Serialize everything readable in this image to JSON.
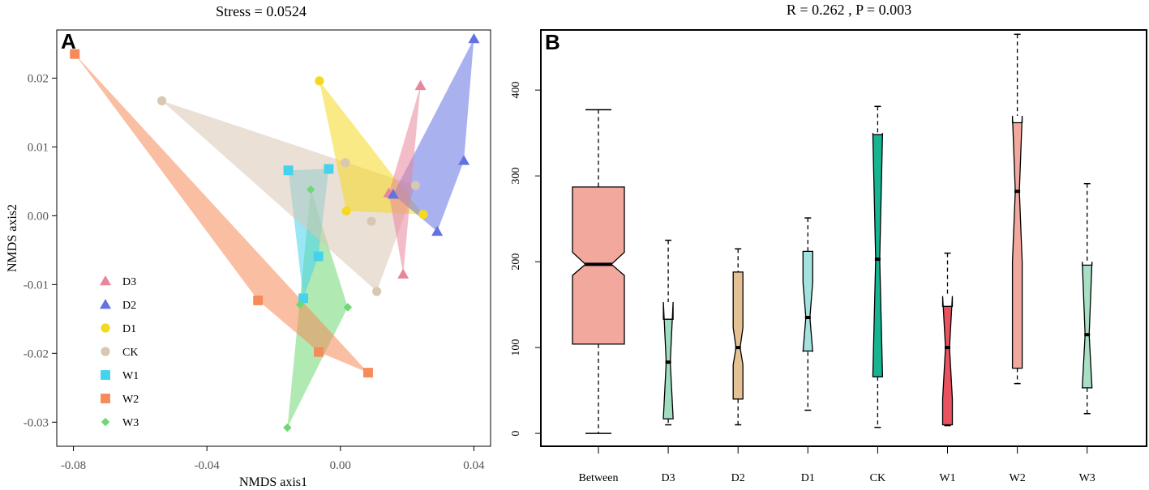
{
  "chart_data": [
    {
      "panel": "A",
      "type": "scatter",
      "title": "Stress = 0.0524",
      "xlabel": "NMDS axis1",
      "ylabel": "NMDS axis2",
      "xlim": [
        -0.085,
        0.045
      ],
      "ylim": [
        -0.0335,
        0.027
      ],
      "xticks": [
        -0.08,
        -0.04,
        0.0,
        0.04
      ],
      "xtick_labels": [
        "-0.08",
        "-0.04",
        "0.00",
        "0.04"
      ],
      "yticks": [
        -0.03,
        -0.02,
        -0.01,
        0.0,
        0.01,
        0.02
      ],
      "ytick_labels": [
        "-0.03",
        "-0.02",
        "-0.01",
        "0.00",
        "0.01",
        "0.02"
      ],
      "legend_position": "bottom-left",
      "groups": [
        {
          "name": "D3",
          "shape": "triangle",
          "color": "#e8869c",
          "points": [
            [
              0.0145,
              0.0033
            ],
            [
              0.024,
              0.0189
            ],
            [
              0.0188,
              -0.0085
            ]
          ]
        },
        {
          "name": "D2",
          "shape": "triangle",
          "color": "#6272e2",
          "points": [
            [
              0.04,
              0.0257
            ],
            [
              0.037,
              0.008
            ],
            [
              0.029,
              -0.0023
            ],
            [
              0.0158,
              0.0031
            ]
          ]
        },
        {
          "name": "D1",
          "shape": "circle",
          "color": "#f5d920",
          "points": [
            [
              -0.0063,
              0.0196
            ],
            [
              0.0018,
              0.0007
            ],
            [
              0.0248,
              0.0002
            ]
          ]
        },
        {
          "name": "CK",
          "shape": "circle",
          "color": "#d8c7b2",
          "points": [
            [
              -0.0535,
              0.0167
            ],
            [
              0.0015,
              0.0077
            ],
            [
              0.0093,
              -0.0008
            ],
            [
              0.0225,
              0.0044
            ],
            [
              0.0109,
              -0.011
            ]
          ]
        },
        {
          "name": "W1",
          "shape": "square",
          "color": "#45d2ec",
          "points": [
            [
              -0.0156,
              0.0066
            ],
            [
              -0.0035,
              0.0068
            ],
            [
              -0.0066,
              -0.0059
            ],
            [
              -0.0111,
              -0.012
            ]
          ]
        },
        {
          "name": "W2",
          "shape": "square",
          "color": "#f68a58",
          "points": [
            [
              -0.0796,
              0.0235
            ],
            [
              -0.0247,
              -0.0123
            ],
            [
              -0.0065,
              -0.0198
            ],
            [
              0.0083,
              -0.0228
            ]
          ]
        },
        {
          "name": "W3",
          "shape": "diamond",
          "color": "#70d873",
          "points": [
            [
              -0.0089,
              0.0038
            ],
            [
              -0.0121,
              -0.0129
            ],
            [
              0.0022,
              -0.0133
            ],
            [
              -0.0159,
              -0.0308
            ]
          ]
        }
      ]
    },
    {
      "panel": "B",
      "type": "box",
      "title": "R =  0.262 ,  P =  0.003",
      "xlabel": "",
      "ylabel": "",
      "ylim": [
        -15,
        470
      ],
      "yticks": [
        0,
        100,
        200,
        300,
        400
      ],
      "ytick_labels": [
        "0",
        "100",
        "200",
        "300",
        "400"
      ],
      "categories": [
        "Between",
        "D3",
        "D2",
        "D1",
        "CK",
        "W1",
        "W2",
        "W3"
      ],
      "boxes": [
        {
          "name": "Between",
          "color": "#f2a89d",
          "wl": 0,
          "q1": 104,
          "med": 197,
          "q3": 287,
          "wh": 377,
          "nlo": 184,
          "nhi": 211
        },
        {
          "name": "D3",
          "color": "#9fdcc0",
          "wl": 10,
          "q1": 17,
          "med": 83,
          "q3": 133,
          "wh": 225,
          "nlo": 18,
          "nhi": 153
        },
        {
          "name": "D2",
          "color": "#e5c293",
          "wl": 10,
          "q1": 40,
          "med": 100,
          "q3": 188,
          "wh": 215,
          "nlo": 80,
          "nhi": 123
        },
        {
          "name": "D1",
          "color": "#a4e2e0",
          "wl": 27,
          "q1": 96,
          "med": 135,
          "q3": 212,
          "wh": 251,
          "nlo": 95,
          "nhi": 176
        },
        {
          "name": "CK",
          "color": "#17b492",
          "wl": 7,
          "q1": 66,
          "med": 203,
          "q3": 348,
          "wh": 381,
          "nlo": 66,
          "nhi": 350
        },
        {
          "name": "W1",
          "color": "#e9525f",
          "wl": 9,
          "q1": 10,
          "med": 100,
          "q3": 148,
          "wh": 210,
          "nlo": 40,
          "nhi": 160
        },
        {
          "name": "W2",
          "color": "#f2a89d",
          "wl": 58,
          "q1": 76,
          "med": 282,
          "q3": 362,
          "wh": 465,
          "nlo": 200,
          "nhi": 370
        },
        {
          "name": "W3",
          "color": "#a9dfc5",
          "wl": 23,
          "q1": 53,
          "med": 115,
          "q3": 196,
          "wh": 291,
          "nlo": 53,
          "nhi": 200
        }
      ]
    }
  ]
}
